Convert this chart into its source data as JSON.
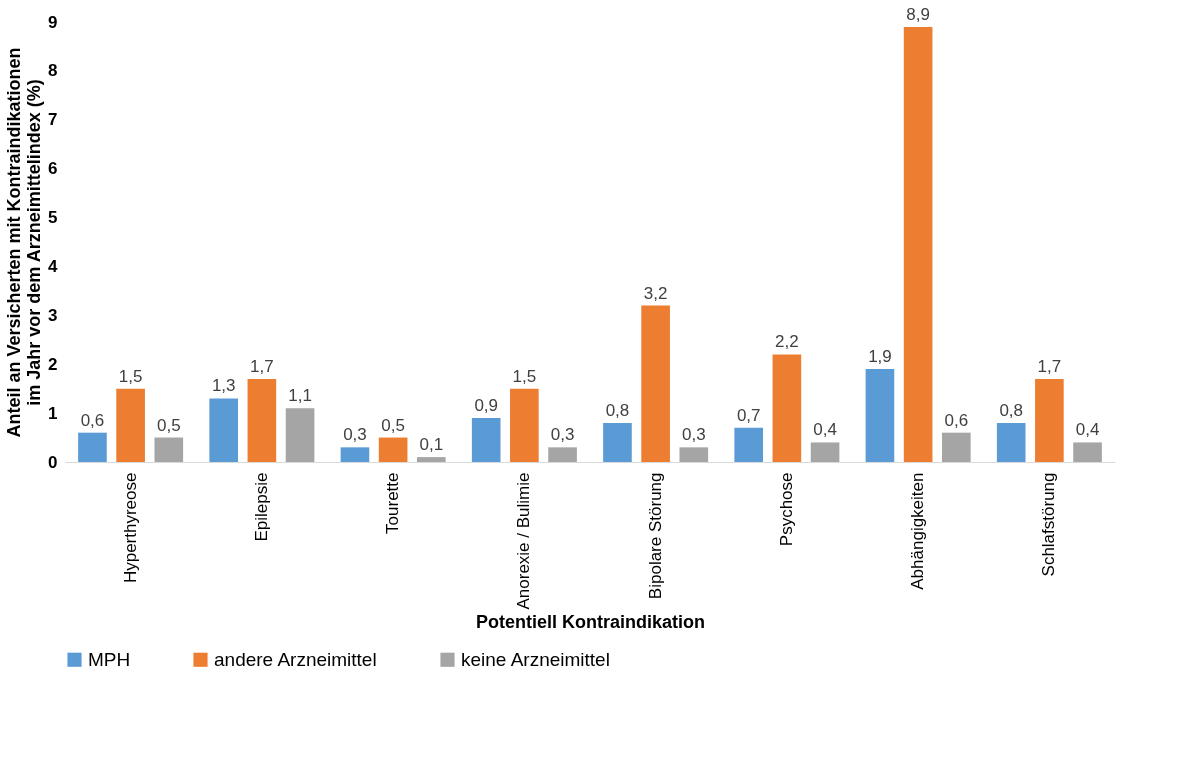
{
  "chart_data": {
    "type": "bar",
    "xlabel": "Potentiell Kontraindikation",
    "ylabel": "Anteil an Versicherten mit Kontraindikationen\nim Jahr vor dem Arzneimittelindex (%)",
    "categories": [
      "Hyperthyreose",
      "Epilepsie",
      "Tourette",
      "Anorexie / Bulimie",
      "Bipolare Störung",
      "Psychose",
      "Abhängigkeiten",
      "Schlafstörung"
    ],
    "series": [
      {
        "name": "MPH",
        "color": "#5b9bd5",
        "values": [
          0.6,
          1.3,
          0.3,
          0.9,
          0.8,
          0.7,
          1.9,
          0.8
        ],
        "value_labels": [
          "0,6",
          "1,3",
          "0,3",
          "0,9",
          "0,8",
          "0,7",
          "1,9",
          "0,8"
        ]
      },
      {
        "name": "andere Arzneimittel",
        "color": "#ed7d31",
        "values": [
          1.5,
          1.7,
          0.5,
          1.5,
          3.2,
          2.2,
          8.9,
          1.7
        ],
        "value_labels": [
          "1,5",
          "1,7",
          "0,5",
          "1,5",
          "3,2",
          "2,2",
          "8,9",
          "1,7"
        ]
      },
      {
        "name": "keine Arzneimittel",
        "color": "#a5a5a5",
        "values": [
          0.5,
          1.1,
          0.1,
          0.3,
          0.3,
          0.4,
          0.6,
          0.4
        ],
        "value_labels": [
          "0,5",
          "1,1",
          "0,1",
          "0,3",
          "0,3",
          "0,4",
          "0,6",
          "0,4"
        ]
      }
    ],
    "ylim": [
      0,
      9
    ],
    "yticks": [
      0,
      1,
      2,
      3,
      4,
      5,
      6,
      7,
      8,
      9
    ],
    "grid": false,
    "legend": "bottom"
  }
}
